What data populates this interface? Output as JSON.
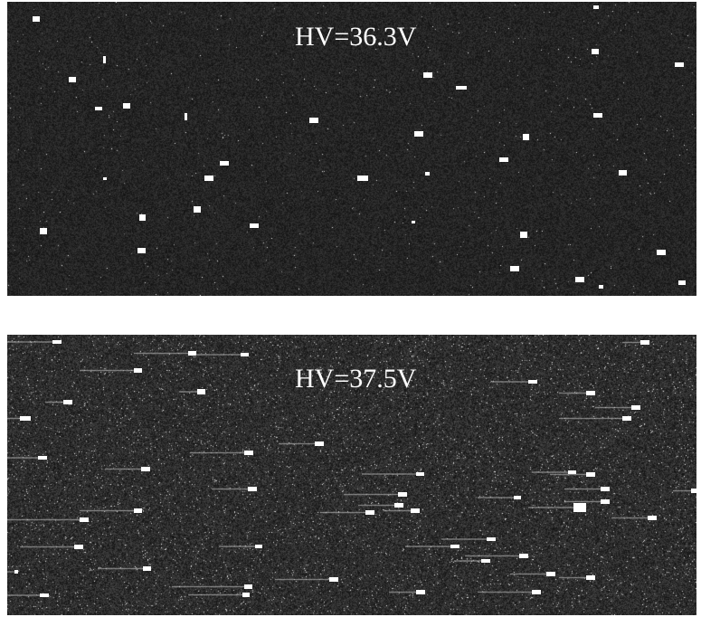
{
  "panels": [
    {
      "label": "HV=36.3V"
    },
    {
      "label": "HV=37.5V"
    }
  ],
  "colors": {
    "background": "#ffffff",
    "panel_background": "#181818",
    "spot": "#ffffff",
    "text": "#ffffff"
  }
}
